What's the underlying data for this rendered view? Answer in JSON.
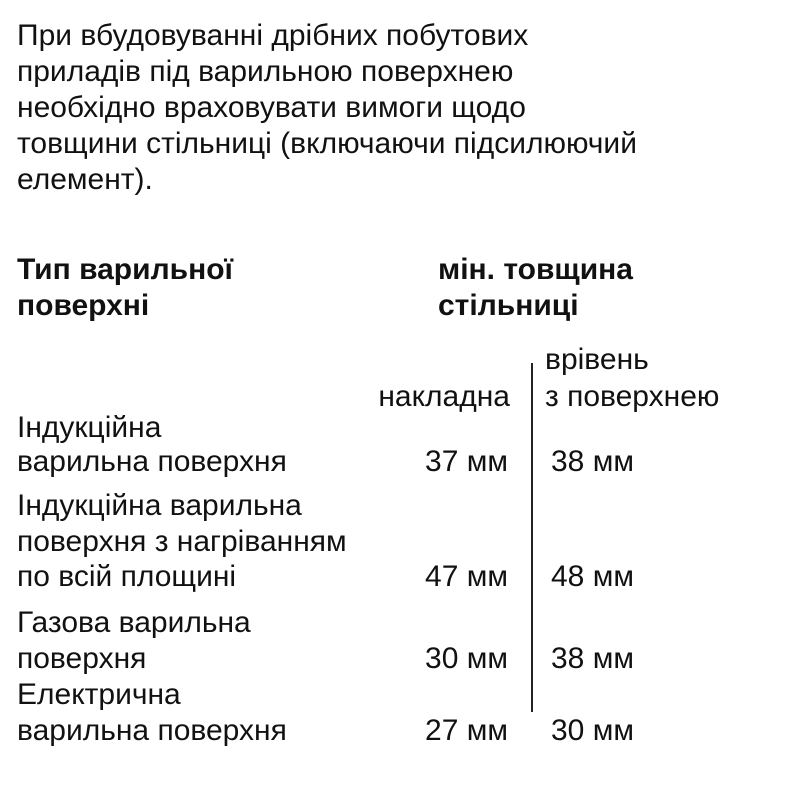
{
  "intro": [
    "При вбудовуванні дрібних побутових",
    "приладів під варильною поверхнею",
    "необхідно враховувати вимоги щодо",
    "товщини стільниці (включаючи підсилюючий",
    "елемент)."
  ],
  "table": {
    "header_type": [
      "Тип варильної",
      "поверхні"
    ],
    "header_thickness": [
      "мін. товщина",
      "стільниці"
    ],
    "col_overlay": "накладна",
    "col_flush": [
      "врівень",
      "з поверхнею"
    ],
    "rows": [
      {
        "type": [
          "Індукційна",
          "варильна поверхня"
        ],
        "overlay": "37 мм",
        "flush": "38 мм"
      },
      {
        "type": [
          "Індукційна варильна",
          "поверхня з нагріванням",
          "по всій площині"
        ],
        "overlay": "47 мм",
        "flush": "48 мм"
      },
      {
        "type": [
          "Газова варильна",
          "поверхня"
        ],
        "overlay": "30 мм",
        "flush": "38 мм"
      },
      {
        "type": [
          "Електрична",
          "варильна поверхня"
        ],
        "overlay": "27 мм",
        "flush": "30 мм"
      }
    ]
  }
}
